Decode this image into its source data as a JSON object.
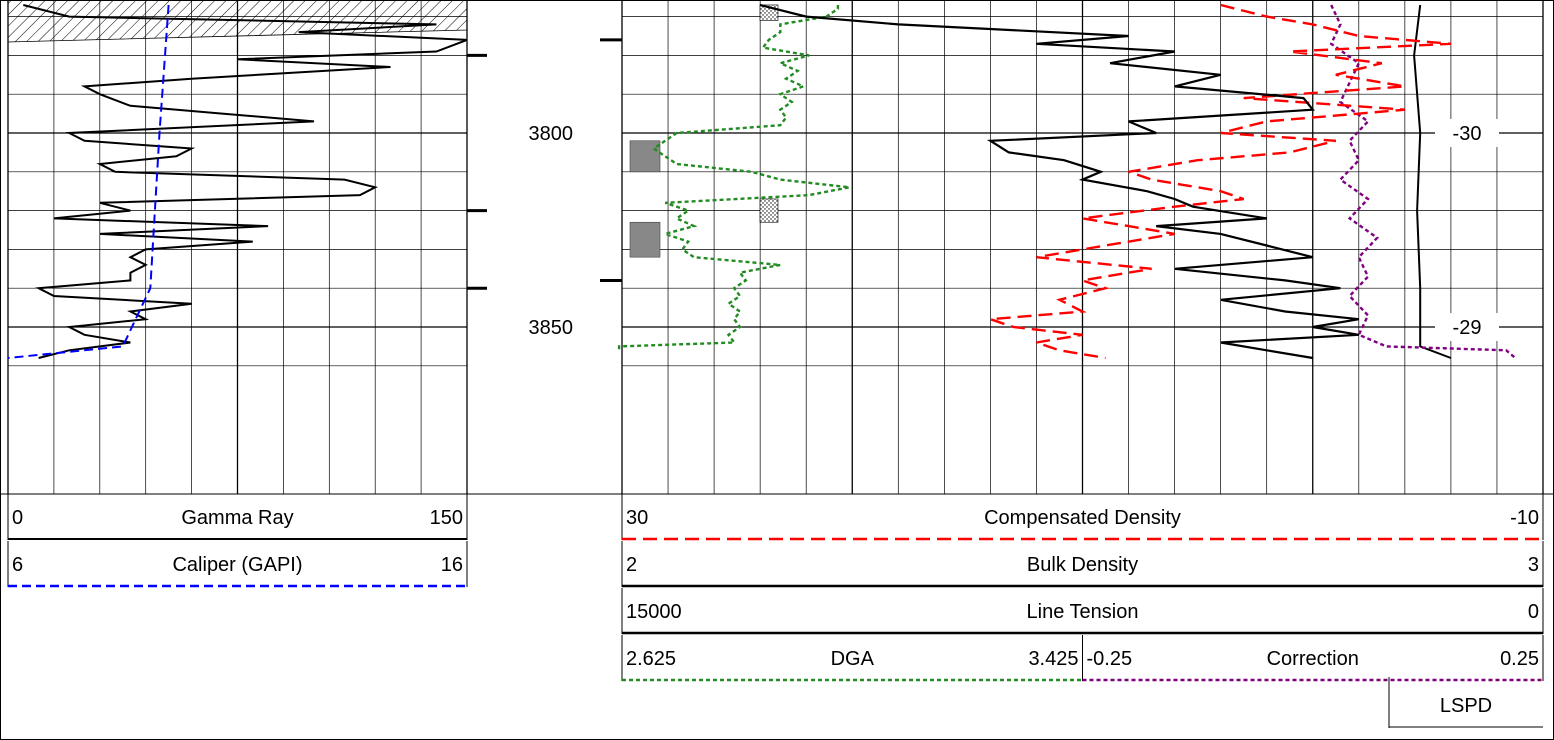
{
  "chart_data": {
    "type": "line",
    "depth_labels": [
      "3800",
      "3850"
    ],
    "depth_range_visible": [
      3767,
      3858
    ],
    "track1": {
      "curves": [
        {
          "name": "Gamma Ray",
          "min": "0",
          "max": "150",
          "color": "#000000",
          "style": "solid"
        },
        {
          "name": "Caliper (GAPI)",
          "min": "6",
          "max": "16",
          "color": "#0000ff",
          "style": "dashed"
        }
      ],
      "gamma_ray": {
        "depth": [
          3767,
          3770,
          3772,
          3774,
          3776,
          3779,
          3781,
          3783,
          3786,
          3788,
          3790,
          3793,
          3795,
          3797,
          3800,
          3802,
          3804,
          3806,
          3808,
          3810,
          3812,
          3814,
          3816,
          3818,
          3820,
          3822,
          3824,
          3826,
          3828,
          3830,
          3832,
          3834,
          3836,
          3838,
          3840,
          3842,
          3844,
          3846,
          3848,
          3850,
          3852,
          3854,
          3856,
          3858
        ],
        "value": [
          5,
          20,
          140,
          95,
          150,
          140,
          75,
          125,
          60,
          25,
          30,
          40,
          70,
          100,
          20,
          25,
          60,
          55,
          30,
          35,
          110,
          120,
          115,
          30,
          40,
          15,
          85,
          30,
          80,
          45,
          40,
          45,
          40,
          40,
          10,
          15,
          60,
          40,
          45,
          20,
          25,
          40,
          20,
          10
        ]
      },
      "caliper": {
        "depth": [
          3767,
          3800,
          3840,
          3845,
          3855,
          3858
        ],
        "value": [
          9.5,
          9.3,
          9.1,
          8.9,
          8.5,
          6
        ]
      }
    },
    "depth_track": {
      "labels": [
        "3800",
        "3850"
      ]
    },
    "track2": {
      "curves": [
        {
          "name": "Compensated Density",
          "min": "30",
          "max": "-10",
          "color": "#ff0000",
          "style": "dashed"
        },
        {
          "name": "Bulk Density",
          "min": "2",
          "max": "3",
          "color": "#000000",
          "style": "solid"
        },
        {
          "name": "Line Tension",
          "min": "15000",
          "max": "0",
          "color": "#000000",
          "style": "solid"
        },
        {
          "name": "DGA",
          "min": "2.625",
          "max": "3.425",
          "color": "#228b22",
          "style": "dotted"
        },
        {
          "name": "Correction",
          "min": "-0.25",
          "max": "0.25",
          "color": "#800080",
          "style": "dotted"
        }
      ],
      "bulk_density": {
        "depth": [
          3767,
          3770,
          3772,
          3775,
          3777,
          3779,
          3782,
          3785,
          3788,
          3791,
          3794,
          3797,
          3800,
          3802,
          3805,
          3807,
          3810,
          3812,
          3815,
          3817,
          3819,
          3822,
          3824,
          3826,
          3829,
          3832,
          3835,
          3838,
          3840,
          3843,
          3846,
          3848,
          3850,
          3852,
          3854,
          3856,
          3858
        ],
        "value": [
          2.15,
          2.2,
          2.3,
          2.55,
          2.45,
          2.6,
          2.53,
          2.65,
          2.6,
          2.74,
          2.75,
          2.55,
          2.58,
          2.4,
          2.42,
          2.48,
          2.52,
          2.5,
          2.57,
          2.6,
          2.62,
          2.7,
          2.58,
          2.65,
          2.7,
          2.75,
          2.6,
          2.72,
          2.78,
          2.65,
          2.72,
          2.8,
          2.75,
          2.8,
          2.65,
          2.7,
          2.75
        ]
      },
      "compensated_density": {
        "depth": [
          3767,
          3770,
          3772,
          3775,
          3777,
          3779,
          3782,
          3785,
          3788,
          3791,
          3794,
          3797,
          3800,
          3802,
          3805,
          3807,
          3810,
          3812,
          3815,
          3817,
          3819,
          3822,
          3824,
          3826,
          3829,
          3832,
          3835,
          3838,
          3840,
          3843,
          3846,
          3848,
          3850,
          3852,
          3854,
          3856,
          3858
        ],
        "value": [
          4,
          2,
          0,
          -2,
          -6,
          1,
          -3,
          -1,
          -4,
          3,
          -4,
          2,
          4,
          -1,
          1,
          5,
          8,
          7,
          4,
          3,
          6,
          10,
          8,
          6,
          9,
          12,
          7,
          10,
          9,
          11,
          10,
          14,
          13,
          10,
          12,
          11,
          9
        ]
      },
      "line_tension": {
        "depth": [
          3767,
          3780,
          3800,
          3820,
          3840,
          3855,
          3858
        ],
        "value": [
          2000,
          2100,
          2000,
          2050,
          2000,
          2000,
          1500
        ]
      },
      "dga": {
        "depth": [
          3767,
          3768,
          3770,
          3772,
          3774,
          3776,
          3778,
          3780,
          3782,
          3784,
          3786,
          3788,
          3790,
          3792,
          3794,
          3796,
          3798,
          3800,
          3802,
          3804,
          3806,
          3808,
          3810,
          3812,
          3814,
          3816,
          3818,
          3820,
          3822,
          3824,
          3826,
          3828,
          3830,
          3832,
          3834,
          3836,
          3838,
          3840,
          3842,
          3844,
          3846,
          3848,
          3850,
          3852,
          3854,
          3855,
          3856
        ],
        "value": [
          3.0,
          3.0,
          2.98,
          2.9,
          2.9,
          2.88,
          2.87,
          2.95,
          2.9,
          2.93,
          2.91,
          2.94,
          2.9,
          2.92,
          2.9,
          2.91,
          2.9,
          2.72,
          2.7,
          2.68,
          2.7,
          2.72,
          2.85,
          2.9,
          3.02,
          2.95,
          2.7,
          2.74,
          2.72,
          2.75,
          2.7,
          2.74,
          2.73,
          2.75,
          2.9,
          2.83,
          2.84,
          2.82,
          2.83,
          2.81,
          2.83,
          2.82,
          2.83,
          2.81,
          2.82,
          2.62,
          2.62
        ]
      },
      "correction": {
        "depth": [
          3767,
          3772,
          3777,
          3782,
          3787,
          3792,
          3797,
          3802,
          3807,
          3812,
          3817,
          3822,
          3827,
          3832,
          3837,
          3842,
          3847,
          3852,
          3855,
          3856,
          3858
        ],
        "value": [
          0.02,
          0.03,
          0.02,
          0.05,
          0.04,
          0.03,
          0.06,
          0.04,
          0.05,
          0.03,
          0.06,
          0.04,
          0.07,
          0.05,
          0.06,
          0.04,
          0.06,
          0.05,
          0.08,
          0.21,
          0.22
        ]
      }
    },
    "lspd_label": "LSPD",
    "side_labels": [
      "-30",
      "-29"
    ]
  }
}
